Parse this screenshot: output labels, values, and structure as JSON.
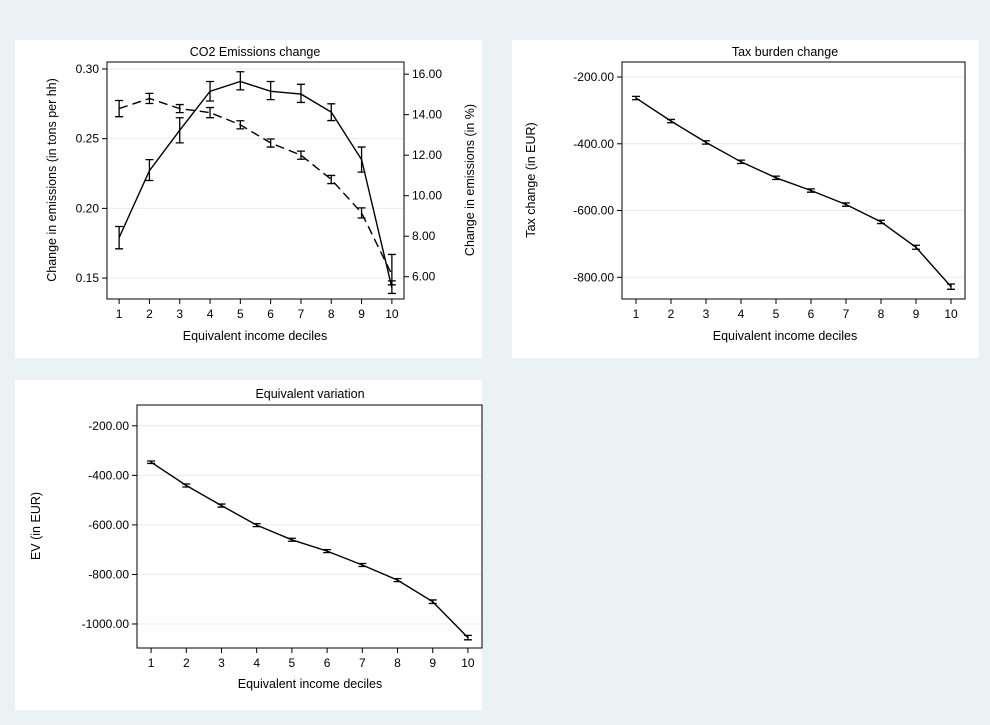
{
  "chart_data": [
    {
      "id": "co2",
      "type": "line",
      "title": "CO2 Emissions change",
      "xlabel": "Equivalent income deciles",
      "ylabel": "Change in emissions (in tons per hh)",
      "ylabel_right": "Change in emissions (in %)",
      "x": [
        1,
        2,
        3,
        4,
        5,
        6,
        7,
        8,
        9,
        10
      ],
      "xlim": [
        0.6,
        10.4
      ],
      "ylim": [
        0.135,
        0.305
      ],
      "ylim_right": [
        4.9,
        16.6
      ],
      "yticks": [
        0.15,
        0.2,
        0.25,
        0.3
      ],
      "ytick_labels": [
        "0.15",
        "0.20",
        "0.25",
        "0.30"
      ],
      "yticks_right": [
        6,
        8,
        10,
        12,
        14,
        16
      ],
      "ytick_labels_right": [
        "6.00",
        "8.00",
        "10.00",
        "12.00",
        "14.00",
        "16.00"
      ],
      "grid": true,
      "series": [
        {
          "axis": "left",
          "style": "solid",
          "values": [
            0.179,
            0.227,
            0.256,
            0.284,
            0.291,
            0.284,
            0.282,
            0.269,
            0.235,
            0.143
          ],
          "ci_low": [
            0.171,
            0.22,
            0.247,
            0.277,
            0.285,
            0.278,
            0.276,
            0.263,
            0.226,
            0.139
          ],
          "ci_high": [
            0.187,
            0.235,
            0.265,
            0.291,
            0.298,
            0.291,
            0.289,
            0.275,
            0.244,
            0.148
          ]
        },
        {
          "axis": "right",
          "style": "dashed",
          "values": [
            14.3,
            14.8,
            14.3,
            14.1,
            13.5,
            12.6,
            12.0,
            10.8,
            9.15,
            6.1
          ],
          "ci_low": [
            13.9,
            14.55,
            14.1,
            13.85,
            13.3,
            12.4,
            11.8,
            10.6,
            8.9,
            5.6
          ],
          "ci_high": [
            14.7,
            15.05,
            14.5,
            14.35,
            13.7,
            12.8,
            12.2,
            11.0,
            9.4,
            7.1
          ]
        }
      ]
    },
    {
      "id": "tax",
      "type": "line",
      "title": "Tax burden change",
      "xlabel": "Equivalent income deciles",
      "ylabel": "Tax change (in EUR)",
      "x": [
        1,
        2,
        3,
        4,
        5,
        6,
        7,
        8,
        9,
        10
      ],
      "xlim": [
        0.6,
        10.4
      ],
      "ylim": [
        -865,
        -155
      ],
      "yticks": [
        -800,
        -600,
        -400,
        -200
      ],
      "ytick_labels": [
        "-800.00",
        "-600.00",
        "-400.00",
        "-200.00"
      ],
      "grid": true,
      "series": [
        {
          "style": "solid",
          "values": [
            -263,
            -332,
            -396,
            -454,
            -502,
            -540,
            -582,
            -634,
            -710,
            -828
          ],
          "ci_low": [
            -268,
            -337,
            -401,
            -459,
            -507,
            -545,
            -587,
            -639,
            -716,
            -836
          ],
          "ci_high": [
            -258,
            -327,
            -391,
            -449,
            -497,
            -535,
            -577,
            -629,
            -704,
            -820
          ]
        }
      ]
    },
    {
      "id": "ev",
      "type": "line",
      "title": "Equivalent variation",
      "xlabel": "Equivalent income deciles",
      "ylabel": "EV (in EUR)",
      "x": [
        1,
        2,
        3,
        4,
        5,
        6,
        7,
        8,
        9,
        10
      ],
      "xlim": [
        0.6,
        10.4
      ],
      "ylim": [
        -1097,
        -116
      ],
      "yticks": [
        -1000,
        -800,
        -600,
        -400,
        -200
      ],
      "ytick_labels": [
        "-1000.00",
        "-800.00",
        "-600.00",
        "-400.00",
        "-200.00"
      ],
      "grid": true,
      "series": [
        {
          "style": "solid",
          "values": [
            -347,
            -441,
            -522,
            -601,
            -660,
            -706,
            -762,
            -823,
            -910,
            -1055
          ],
          "ci_low": [
            -352,
            -447,
            -528,
            -607,
            -666,
            -712,
            -768,
            -829,
            -917,
            -1064
          ],
          "ci_high": [
            -342,
            -435,
            -516,
            -595,
            -654,
            -700,
            -756,
            -817,
            -903,
            -1046
          ]
        }
      ]
    }
  ]
}
